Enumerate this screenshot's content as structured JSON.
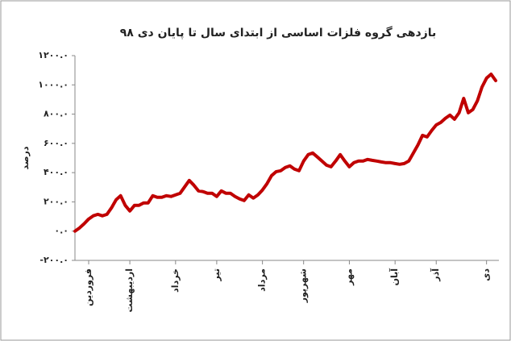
{
  "chart_data": {
    "type": "line",
    "title": "بازدهی گروه فلزات اساسی از ابتدای سال تا پایان دی ۹۸",
    "y_label": "درصد",
    "categories": [
      null,
      null,
      null,
      "فروردین",
      null,
      null,
      null,
      null,
      null,
      null,
      null,
      null,
      "اردیبهشت",
      null,
      null,
      null,
      null,
      null,
      null,
      null,
      null,
      null,
      "خرداد",
      null,
      null,
      null,
      null,
      null,
      null,
      null,
      null,
      "تیر",
      null,
      null,
      null,
      null,
      null,
      null,
      null,
      null,
      null,
      "مرداد",
      null,
      null,
      null,
      null,
      null,
      null,
      null,
      null,
      "شهریور",
      null,
      null,
      null,
      null,
      null,
      null,
      null,
      null,
      null,
      "مهر",
      null,
      null,
      null,
      null,
      null,
      null,
      null,
      null,
      null,
      "آبان",
      null,
      null,
      null,
      null,
      null,
      null,
      null,
      null,
      "آذر",
      null,
      null,
      null,
      null,
      null,
      null,
      null,
      null,
      null,
      null,
      "دی",
      null,
      null
    ],
    "series": [
      {
        "name": "بازدهی",
        "color": "#c00000",
        "values": [
          0,
          22,
          50,
          83,
          105,
          115,
          105,
          115,
          160,
          215,
          242,
          176,
          138,
          176,
          176,
          193,
          193,
          242,
          231,
          231,
          242,
          237,
          248,
          259,
          303,
          347,
          314,
          275,
          270,
          259,
          259,
          237,
          275,
          259,
          259,
          237,
          220,
          209,
          248,
          226,
          248,
          281,
          325,
          380,
          407,
          413,
          435,
          446,
          424,
          413,
          479,
          523,
          534,
          507,
          479,
          451,
          440,
          479,
          523,
          479,
          440,
          468,
          479,
          479,
          490,
          484,
          479,
          473,
          468,
          468,
          462,
          457,
          462,
          479,
          534,
          589,
          655,
          644,
          688,
          726,
          743,
          771,
          793,
          765,
          809,
          908,
          809,
          831,
          891,
          985,
          1046,
          1073,
          1029
        ]
      }
    ],
    "ylim": [
      -200,
      1200
    ],
    "yticks": [
      {
        "value": -200,
        "label": "-۲۰۰.۰"
      },
      {
        "value": 0,
        "label": "۰.۰"
      },
      {
        "value": 200,
        "label": "۲۰۰.۰"
      },
      {
        "value": 400,
        "label": "۴۰۰.۰"
      },
      {
        "value": 600,
        "label": "۶۰۰.۰"
      },
      {
        "value": 800,
        "label": "۸۰۰.۰"
      },
      {
        "value": 1000,
        "label": "۱۰۰۰.۰"
      },
      {
        "value": 1200,
        "label": "۱۲۰۰.۰"
      }
    ],
    "grid": false
  }
}
